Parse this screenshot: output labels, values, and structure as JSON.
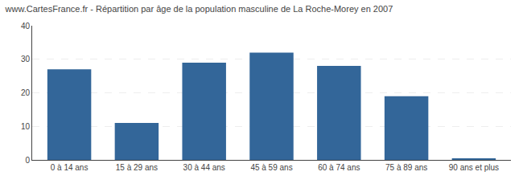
{
  "chart_data": {
    "type": "bar",
    "title": "www.CartesFrance.fr - Répartition par âge de la population masculine de La Roche-Morey en 2007",
    "categories": [
      "0 à 14 ans",
      "15 à 29 ans",
      "30 à 44 ans",
      "45 à 59 ans",
      "60 à 74 ans",
      "75 à 89 ans",
      "90 ans et plus"
    ],
    "values": [
      27,
      11,
      29,
      32,
      28,
      19,
      0.5
    ],
    "color": "#336699",
    "ylim": [
      0,
      40
    ],
    "yticks": [
      0,
      10,
      20,
      30,
      40
    ],
    "grid": true
  }
}
